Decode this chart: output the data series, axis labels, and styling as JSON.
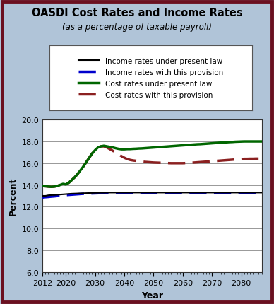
{
  "title": "OASDI Cost Rates and Income Rates",
  "subtitle": "(as a percentage of taxable payroll)",
  "xlabel": "Year",
  "ylabel": "Percent",
  "ylim": [
    6.0,
    20.0
  ],
  "yticks": [
    6.0,
    8.0,
    10.0,
    12.0,
    14.0,
    16.0,
    18.0,
    20.0
  ],
  "xlim": [
    2012,
    2087
  ],
  "xticks": [
    2012,
    2020,
    2030,
    2040,
    2050,
    2060,
    2070,
    2080
  ],
  "background_color": "#b0c4d8",
  "plot_bg_color": "#ffffff",
  "border_color": "#6b1020",
  "years": [
    2012,
    2013,
    2014,
    2015,
    2016,
    2017,
    2018,
    2019,
    2020,
    2021,
    2022,
    2023,
    2024,
    2025,
    2026,
    2027,
    2028,
    2029,
    2030,
    2031,
    2032,
    2033,
    2034,
    2035,
    2036,
    2037,
    2038,
    2039,
    2040,
    2041,
    2042,
    2043,
    2044,
    2045,
    2046,
    2047,
    2048,
    2049,
    2050,
    2051,
    2052,
    2053,
    2054,
    2055,
    2056,
    2057,
    2058,
    2059,
    2060,
    2061,
    2062,
    2063,
    2064,
    2065,
    2066,
    2067,
    2068,
    2069,
    2070,
    2071,
    2072,
    2073,
    2074,
    2075,
    2076,
    2077,
    2078,
    2079,
    2080,
    2081,
    2082,
    2083,
    2084,
    2085,
    2086,
    2087
  ],
  "income_present_law": [
    13.0,
    13.0,
    13.05,
    13.07,
    13.08,
    13.1,
    13.12,
    13.14,
    13.16,
    13.18,
    13.2,
    13.21,
    13.22,
    13.23,
    13.24,
    13.25,
    13.26,
    13.27,
    13.28,
    13.28,
    13.29,
    13.29,
    13.3,
    13.3,
    13.3,
    13.3,
    13.3,
    13.3,
    13.3,
    13.3,
    13.3,
    13.3,
    13.3,
    13.3,
    13.3,
    13.3,
    13.3,
    13.3,
    13.3,
    13.3,
    13.3,
    13.3,
    13.3,
    13.3,
    13.3,
    13.3,
    13.3,
    13.3,
    13.3,
    13.3,
    13.3,
    13.3,
    13.3,
    13.3,
    13.3,
    13.3,
    13.3,
    13.3,
    13.3,
    13.3,
    13.3,
    13.3,
    13.3,
    13.3,
    13.3,
    13.3,
    13.3,
    13.3,
    13.3,
    13.3,
    13.3,
    13.3,
    13.3,
    13.3,
    13.3,
    13.3
  ],
  "income_provision": [
    12.85,
    12.88,
    12.9,
    12.93,
    12.95,
    12.98,
    13.0,
    13.03,
    13.07,
    13.09,
    13.11,
    13.13,
    13.15,
    13.17,
    13.19,
    13.2,
    13.21,
    13.22,
    13.23,
    13.24,
    13.25,
    13.26,
    13.27,
    13.27,
    13.27,
    13.27,
    13.27,
    13.27,
    13.27,
    13.27,
    13.27,
    13.27,
    13.27,
    13.27,
    13.27,
    13.27,
    13.27,
    13.27,
    13.27,
    13.27,
    13.27,
    13.27,
    13.27,
    13.27,
    13.27,
    13.27,
    13.27,
    13.27,
    13.27,
    13.27,
    13.27,
    13.27,
    13.27,
    13.27,
    13.27,
    13.27,
    13.27,
    13.27,
    13.27,
    13.27,
    13.27,
    13.27,
    13.27,
    13.27,
    13.27,
    13.27,
    13.27,
    13.27,
    13.27,
    13.27,
    13.27,
    13.27,
    13.27,
    13.27,
    13.27,
    13.27
  ],
  "cost_present_law": [
    13.9,
    13.88,
    13.85,
    13.83,
    13.85,
    13.9,
    14.0,
    14.1,
    14.05,
    14.2,
    14.45,
    14.7,
    15.0,
    15.35,
    15.7,
    16.1,
    16.5,
    16.9,
    17.2,
    17.45,
    17.55,
    17.6,
    17.55,
    17.5,
    17.45,
    17.38,
    17.32,
    17.28,
    17.28,
    17.3,
    17.3,
    17.32,
    17.33,
    17.35,
    17.36,
    17.38,
    17.4,
    17.42,
    17.44,
    17.46,
    17.48,
    17.5,
    17.52,
    17.54,
    17.56,
    17.58,
    17.6,
    17.62,
    17.64,
    17.66,
    17.68,
    17.7,
    17.72,
    17.74,
    17.75,
    17.77,
    17.79,
    17.81,
    17.83,
    17.85,
    17.87,
    17.89,
    17.9,
    17.92,
    17.94,
    17.95,
    17.97,
    17.98,
    17.99,
    18.0,
    18.0,
    18.0,
    18.0,
    18.0,
    18.0,
    18.0
  ],
  "cost_provision": [
    13.9,
    13.88,
    13.85,
    13.83,
    13.85,
    13.9,
    14.0,
    14.1,
    14.05,
    14.2,
    14.45,
    14.7,
    15.0,
    15.35,
    15.7,
    16.1,
    16.5,
    16.9,
    17.2,
    17.45,
    17.55,
    17.55,
    17.45,
    17.3,
    17.15,
    16.98,
    16.82,
    16.65,
    16.5,
    16.38,
    16.3,
    16.25,
    16.22,
    16.18,
    16.15,
    16.12,
    16.1,
    16.08,
    16.06,
    16.05,
    16.04,
    16.03,
    16.02,
    16.01,
    16.0,
    16.0,
    16.0,
    16.0,
    16.0,
    16.01,
    16.02,
    16.04,
    16.06,
    16.08,
    16.1,
    16.12,
    16.14,
    16.16,
    16.18,
    16.2,
    16.22,
    16.24,
    16.26,
    16.28,
    16.3,
    16.32,
    16.34,
    16.36,
    16.38,
    16.4,
    16.4,
    16.41,
    16.41,
    16.42,
    16.42,
    16.43
  ],
  "income_present_law_color": "#000000",
  "income_provision_color": "#0000cc",
  "cost_present_law_color": "#006600",
  "cost_provision_color": "#8b2020",
  "legend_labels": [
    "Income rates under present law",
    "Income rates with this provision",
    "Cost rates under present law",
    "Cost rates with this provision"
  ]
}
